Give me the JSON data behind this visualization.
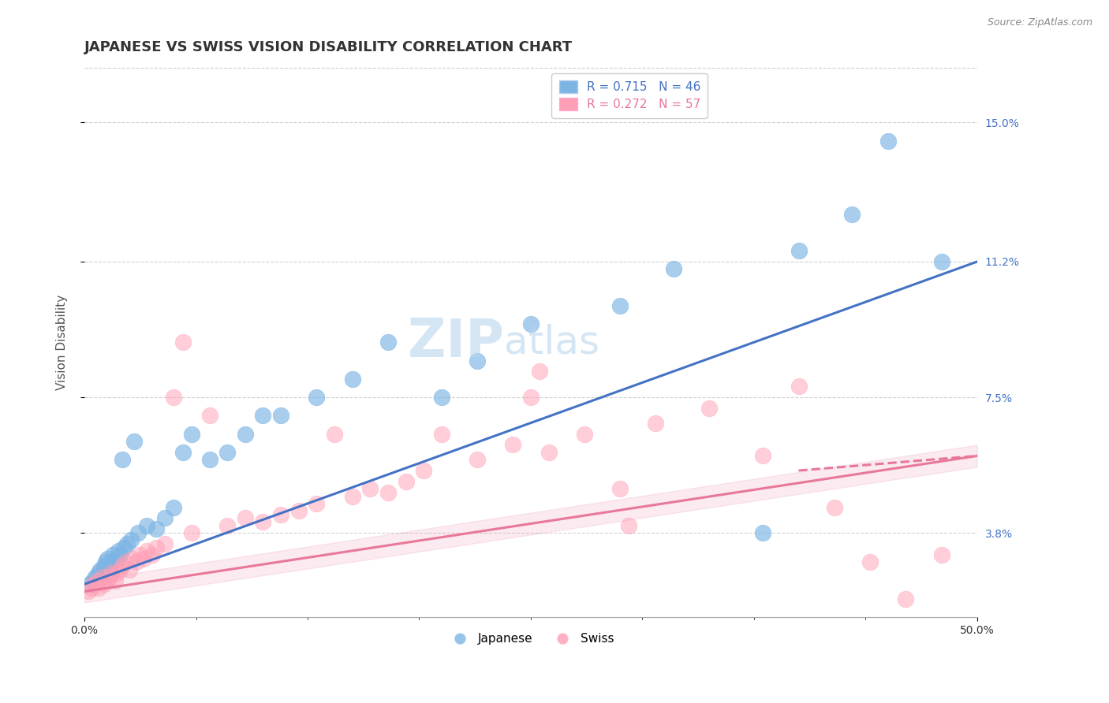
{
  "title": "JAPANESE VS SWISS VISION DISABILITY CORRELATION CHART",
  "source_text": "Source: ZipAtlas.com",
  "ylabel": "Vision Disability",
  "xlim": [
    0.0,
    50.0
  ],
  "ylim": [
    1.5,
    16.5
  ],
  "ytick_values": [
    3.8,
    7.5,
    11.2,
    15.0
  ],
  "ytick_labels": [
    "3.8%",
    "7.5%",
    "11.2%",
    "15.0%"
  ],
  "watermark_top": "ZIP",
  "watermark_bot": "atlas",
  "legend_blue_r": "R = 0.715",
  "legend_blue_n": "N = 46",
  "legend_pink_r": "R = 0.272",
  "legend_pink_n": "N = 57",
  "blue_color": "#7CB4E4",
  "pink_color": "#FF9EB5",
  "line_blue_color": "#4472C4",
  "line_pink_color": "#E87899",
  "background_color": "#FFFFFF",
  "grid_color": "#CCCCCC",
  "blue_scatter_x": [
    0.3,
    0.5,
    0.6,
    0.7,
    0.8,
    0.9,
    1.0,
    1.1,
    1.2,
    1.3,
    1.4,
    1.5,
    1.6,
    1.8,
    1.9,
    2.0,
    2.1,
    2.2,
    2.4,
    2.6,
    2.8,
    3.0,
    3.5,
    4.0,
    4.5,
    5.0,
    5.5,
    6.0,
    7.0,
    8.0,
    9.0,
    10.0,
    11.0,
    13.0,
    15.0,
    17.0,
    20.0,
    22.0,
    25.0,
    30.0,
    33.0,
    38.0,
    40.0,
    43.0,
    45.0,
    48.0
  ],
  "blue_scatter_y": [
    2.4,
    2.5,
    2.6,
    2.5,
    2.7,
    2.8,
    2.6,
    2.9,
    3.0,
    3.1,
    2.8,
    3.0,
    3.2,
    3.1,
    3.3,
    3.2,
    5.8,
    3.4,
    3.5,
    3.6,
    6.3,
    3.8,
    4.0,
    3.9,
    4.2,
    4.5,
    6.0,
    6.5,
    5.8,
    6.0,
    6.5,
    7.0,
    7.0,
    7.5,
    8.0,
    9.0,
    7.5,
    8.5,
    9.5,
    10.0,
    11.0,
    3.8,
    11.5,
    12.5,
    14.5,
    11.2
  ],
  "pink_scatter_x": [
    0.2,
    0.4,
    0.5,
    0.7,
    0.8,
    1.0,
    1.1,
    1.3,
    1.4,
    1.5,
    1.7,
    1.8,
    2.0,
    2.1,
    2.3,
    2.5,
    2.7,
    2.9,
    3.1,
    3.3,
    3.5,
    3.8,
    4.0,
    4.5,
    5.0,
    5.5,
    6.0,
    7.0,
    8.0,
    9.0,
    10.0,
    11.0,
    12.0,
    13.0,
    14.0,
    15.0,
    16.0,
    17.0,
    18.0,
    19.0,
    20.0,
    22.0,
    24.0,
    26.0,
    28.0,
    30.0,
    32.0,
    35.0,
    38.0,
    40.0,
    42.0,
    44.0,
    46.0,
    48.0,
    25.0,
    25.5,
    30.5
  ],
  "pink_scatter_y": [
    2.2,
    2.3,
    2.4,
    2.5,
    2.3,
    2.6,
    2.4,
    2.5,
    2.6,
    2.7,
    2.5,
    2.7,
    2.8,
    2.9,
    3.0,
    2.8,
    3.1,
    3.0,
    3.2,
    3.1,
    3.3,
    3.2,
    3.4,
    3.5,
    7.5,
    9.0,
    3.8,
    7.0,
    4.0,
    4.2,
    4.1,
    4.3,
    4.4,
    4.6,
    6.5,
    4.8,
    5.0,
    4.9,
    5.2,
    5.5,
    6.5,
    5.8,
    6.2,
    6.0,
    6.5,
    5.0,
    6.8,
    7.2,
    5.9,
    7.8,
    4.5,
    3.0,
    2.0,
    3.2,
    7.5,
    8.2,
    4.0
  ],
  "blue_line_x": [
    0.0,
    50.0
  ],
  "blue_line_y": [
    2.4,
    11.2
  ],
  "pink_line_x": [
    0.0,
    50.0
  ],
  "pink_line_y": [
    2.2,
    5.9
  ],
  "title_fontsize": 13,
  "axis_label_fontsize": 11,
  "tick_fontsize": 10,
  "legend_fontsize": 11,
  "source_fontsize": 9,
  "watermark_fontsize": 48
}
